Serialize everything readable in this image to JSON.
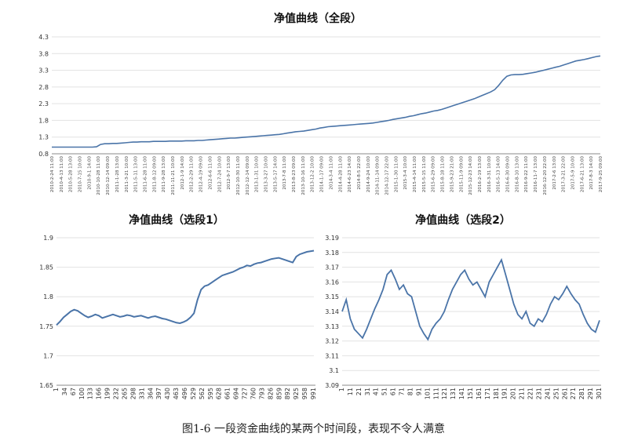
{
  "caption": "图1-6 一段资金曲线的某两个时间段，表现不令人满意",
  "chart_data": [
    {
      "type": "line",
      "title": "净值曲线（全段）",
      "xlabel": "",
      "ylabel": "",
      "ylim": [
        0.8,
        4.3
      ],
      "yticks": [
        "4.3",
        "3.8",
        "3.3",
        "2.8",
        "2.3",
        "1.8",
        "1.3",
        "0.8"
      ],
      "xticks": [
        "2010-2-24 11:00",
        "2010-4-13 11:00",
        "2010-5-28 13:00",
        "2010-7-15 10:00",
        "2010-9-1 14:00",
        "2010-10-28 11:00",
        "2010-12-14 09:00",
        "2011-1-28 13:00",
        "2011-3-21 10:00",
        "2011-5-11 13:00",
        "2011-6-28 11:00",
        "2011-8-12 09:00",
        "2011-9-28 13:00",
        "2011-11-21 10:00",
        "2012-1-9 14:00",
        "2012-2-29 11:00",
        "2012-4-19 09:00",
        "2012-6-6 11:00",
        "2012-7-24 10:00",
        "2012-9-7 13:00",
        "2012-10-30 11:00",
        "2012-12-14 09:00",
        "2013-1-31 10:00",
        "2013-3-27 10:00",
        "2013-5-17 14:00",
        "2013-7-8 11:00",
        "2013-8-23 09:00",
        "2013-10-16 11:00",
        "2013-12-2 10:00",
        "2014-1-17 09:00",
        "2014-3-4 11:00",
        "2014-4-28 11:00",
        "2014-6-23 14:00",
        "2014-8-5 22:00",
        "2014-9-24 10:00",
        "2014-11-14 09:00",
        "2014-12-17 22:00",
        "2015-1-30 11:00",
        "2015-3-4 10:00",
        "2015-4-14 11:00",
        "2015-5-15 11:00",
        "2015-6-29 09:00",
        "2015-8-18 11:00",
        "2015-9-23 21:00",
        "2015-11-9 09:00",
        "2015-12-23 14:00",
        "2016-2-19 13:00",
        "2016-3-31 10:00",
        "2016-5-13 14:00",
        "2016-6-30 09:00",
        "2016-8-10 13:00",
        "2016-9-22 11:00",
        "2016-11-7 13:00",
        "2016-12-20 22:00",
        "2017-2-6 13:00",
        "2017-3-21 22:00",
        "2017-5-9 10:00",
        "2017-6-21 13:00",
        "2017-8-3 14:00",
        "2017-9-25 09:00"
      ],
      "series": [
        {
          "values": [
            1.0,
            1.0,
            1.0,
            1.0,
            1.0,
            1.0,
            1.0,
            1.0,
            1.0,
            1.0,
            1.0,
            1.01,
            1.08,
            1.1,
            1.1,
            1.11,
            1.11,
            1.12,
            1.13,
            1.14,
            1.15,
            1.15,
            1.16,
            1.16,
            1.16,
            1.17,
            1.17,
            1.17,
            1.17,
            1.18,
            1.18,
            1.18,
            1.18,
            1.19,
            1.19,
            1.19,
            1.2,
            1.2,
            1.21,
            1.22,
            1.23,
            1.24,
            1.25,
            1.26,
            1.27,
            1.27,
            1.28,
            1.29,
            1.3,
            1.31,
            1.32,
            1.33,
            1.34,
            1.35,
            1.36,
            1.37,
            1.38,
            1.4,
            1.42,
            1.44,
            1.46,
            1.47,
            1.48,
            1.5,
            1.52,
            1.54,
            1.57,
            1.59,
            1.61,
            1.62,
            1.63,
            1.64,
            1.65,
            1.66,
            1.67,
            1.68,
            1.69,
            1.7,
            1.71,
            1.72,
            1.74,
            1.76,
            1.78,
            1.8,
            1.83,
            1.85,
            1.87,
            1.89,
            1.92,
            1.94,
            1.97,
            2.0,
            2.02,
            2.05,
            2.08,
            2.1,
            2.13,
            2.17,
            2.21,
            2.25,
            2.29,
            2.33,
            2.37,
            2.41,
            2.45,
            2.5,
            2.55,
            2.6,
            2.65,
            2.72,
            2.85,
            3.0,
            3.12,
            3.16,
            3.17,
            3.17,
            3.18,
            3.2,
            3.22,
            3.24,
            3.27,
            3.3,
            3.33,
            3.36,
            3.39,
            3.42,
            3.46,
            3.5,
            3.54,
            3.58,
            3.6,
            3.62,
            3.65,
            3.68,
            3.71,
            3.73
          ]
        }
      ]
    },
    {
      "type": "line",
      "title": "净值曲线（选段1）",
      "xlabel": "",
      "ylabel": "",
      "ylim": [
        1.65,
        1.9
      ],
      "yticks": [
        "1.9",
        "1.85",
        "1.8",
        "1.75",
        "1.7",
        "1.65"
      ],
      "xticks": [
        "1",
        "34",
        "67",
        "100",
        "133",
        "166",
        "199",
        "232",
        "265",
        "298",
        "331",
        "364",
        "397",
        "430",
        "463",
        "496",
        "529",
        "562",
        "595",
        "628",
        "661",
        "694",
        "727",
        "760",
        "793",
        "826",
        "859",
        "892",
        "925",
        "958",
        "991"
      ],
      "series": [
        {
          "values": [
            1.752,
            1.758,
            1.765,
            1.77,
            1.775,
            1.778,
            1.776,
            1.772,
            1.768,
            1.765,
            1.767,
            1.77,
            1.768,
            1.764,
            1.766,
            1.768,
            1.77,
            1.768,
            1.766,
            1.767,
            1.769,
            1.768,
            1.766,
            1.767,
            1.768,
            1.766,
            1.764,
            1.766,
            1.767,
            1.765,
            1.763,
            1.762,
            1.76,
            1.758,
            1.756,
            1.755,
            1.757,
            1.76,
            1.765,
            1.772,
            1.795,
            1.812,
            1.818,
            1.82,
            1.824,
            1.828,
            1.832,
            1.836,
            1.838,
            1.84,
            1.842,
            1.845,
            1.848,
            1.85,
            1.853,
            1.852,
            1.855,
            1.857,
            1.858,
            1.86,
            1.862,
            1.864,
            1.865,
            1.866,
            1.864,
            1.862,
            1.86,
            1.858,
            1.868,
            1.872,
            1.874,
            1.876,
            1.877,
            1.878
          ]
        }
      ]
    },
    {
      "type": "line",
      "title": "净值曲线（选段2）",
      "xlabel": "",
      "ylabel": "",
      "ylim": [
        3.09,
        3.19
      ],
      "yticks": [
        "3.19",
        "3.18",
        "3.17",
        "3.16",
        "3.15",
        "3.14",
        "3.13",
        "3.12",
        "3.11",
        "3.1",
        "3.09"
      ],
      "xticks": [
        "1",
        "11",
        "21",
        "31",
        "41",
        "51",
        "61",
        "71",
        "81",
        "91",
        "101",
        "111",
        "121",
        "131",
        "141",
        "151",
        "161",
        "171",
        "181",
        "191",
        "201",
        "211",
        "221",
        "231",
        "241",
        "251",
        "261",
        "271",
        "281",
        "291",
        "301"
      ],
      "series": [
        {
          "values": [
            3.14,
            3.148,
            3.135,
            3.128,
            3.125,
            3.122,
            3.128,
            3.135,
            3.142,
            3.148,
            3.155,
            3.165,
            3.168,
            3.162,
            3.155,
            3.158,
            3.152,
            3.15,
            3.14,
            3.13,
            3.125,
            3.121,
            3.128,
            3.132,
            3.135,
            3.14,
            3.148,
            3.155,
            3.16,
            3.165,
            3.168,
            3.162,
            3.158,
            3.16,
            3.155,
            3.15,
            3.16,
            3.165,
            3.17,
            3.175,
            3.165,
            3.155,
            3.145,
            3.138,
            3.135,
            3.14,
            3.132,
            3.13,
            3.135,
            3.133,
            3.138,
            3.145,
            3.15,
            3.148,
            3.152,
            3.157,
            3.152,
            3.148,
            3.145,
            3.138,
            3.132,
            3.128,
            3.126,
            3.134
          ]
        }
      ]
    }
  ]
}
